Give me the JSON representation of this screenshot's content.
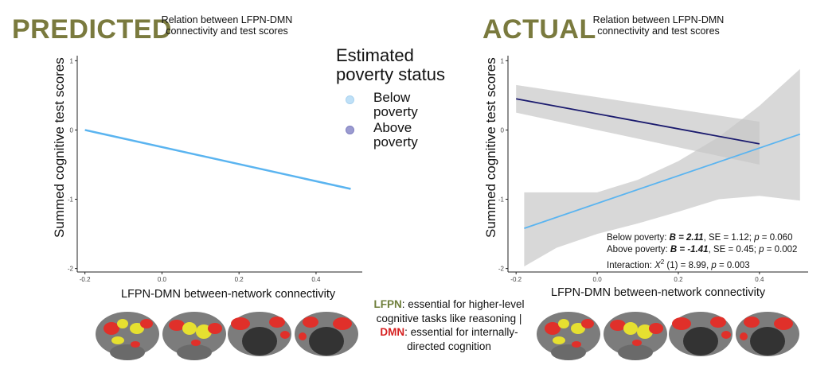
{
  "left_panel": {
    "heading": "PREDICTED",
    "subtitle_line1": "Relation between LFPN-DMN",
    "subtitle_line2": "connectivity and test scores"
  },
  "right_panel": {
    "heading": "ACTUAL",
    "subtitle_line1": "Relation between LFPN-DMN",
    "subtitle_line2": "connectivity and test scores",
    "stats": {
      "line1_prefix": "Below poverty: ",
      "line1_b": "B = 2.11",
      "line1_rest_a": ", SE = 1.12; ",
      "p_letter": "p",
      "line1_rest_b": " = 0.060",
      "line2_prefix": "Above poverty: ",
      "line2_b": "B = -1.41",
      "line2_rest_a": ", SE = 0.45; ",
      "line2_rest_b": " = 0.002",
      "line3_prefix": "Interaction: ",
      "chi_letter": "X",
      "chi_sup": "2",
      "line3_rest": " (1) = 8.99, ",
      "line3_p_rest": " = 0.003"
    }
  },
  "legend": {
    "title_line1": "Estimated",
    "title_line2": "poverty status",
    "items": [
      {
        "label": "Below poverty",
        "color": "#5ab4f0"
      },
      {
        "label": "Above poverty",
        "color": "#1a1a6e"
      }
    ]
  },
  "center_note": {
    "lfpn": "LFPN",
    "part1": ": essential for higher-level cognitive tasks like reasoning | ",
    "dmn": "DMN",
    "part2": ": essential for internally-directed cognition"
  },
  "colors": {
    "heading": "#7a7a3e",
    "below": "#5ab4f0",
    "above": "#1a1a6e",
    "ci_band": "#c8c8c8",
    "brain_gray": "#7a7a7a",
    "brain_red": "#e0302a",
    "brain_yellow": "#e6e030"
  },
  "chart_data": [
    {
      "type": "line",
      "title": "Relation between LFPN-DMN connectivity and test scores",
      "panel": "PREDICTED",
      "xlabel": "LFPN-DMN between-network connectivity",
      "ylabel": "Summed cognitive test scores",
      "xlim": [
        -0.22,
        0.52
      ],
      "ylim": [
        -2.05,
        1.05
      ],
      "xticks": [
        -0.2,
        0.0,
        0.2,
        0.4
      ],
      "xtick_labels": [
        "-0.2",
        "0.0",
        "0.2",
        "0.4"
      ],
      "yticks": [
        -2,
        -1,
        0,
        1
      ],
      "ytick_labels": [
        "-2",
        "-1",
        "0",
        "1"
      ],
      "series": [
        {
          "name": "Below poverty",
          "color": "#5ab4f0",
          "x": [
            -0.2,
            0.49
          ],
          "y": [
            0.0,
            -0.85
          ]
        }
      ]
    },
    {
      "type": "line",
      "title": "Relation between LFPN-DMN connectivity and test scores",
      "panel": "ACTUAL",
      "xlabel": "LFPN-DMN between-network connectivity",
      "ylabel": "Summed cognitive test scores",
      "xlim": [
        -0.22,
        0.52
      ],
      "ylim": [
        -2.05,
        1.05
      ],
      "xticks": [
        -0.2,
        0.0,
        0.2,
        0.4
      ],
      "xtick_labels": [
        "-0.2",
        "0.0",
        "0.2",
        "0.4"
      ],
      "yticks": [
        -2,
        -1,
        0,
        1
      ],
      "ytick_labels": [
        "-2",
        "-1",
        "0",
        "1"
      ],
      "series": [
        {
          "name": "Above poverty",
          "color": "#1a1a6e",
          "x": [
            -0.2,
            0.4
          ],
          "y": [
            0.45,
            -0.2
          ],
          "ci_upper": [
            0.65,
            0.12
          ],
          "ci_lower": [
            0.25,
            -0.5
          ]
        },
        {
          "name": "Below poverty",
          "color": "#5ab4f0",
          "x": [
            -0.18,
            0.5
          ],
          "y": [
            -1.42,
            -0.06
          ],
          "ci_x": [
            -0.18,
            -0.1,
            0.0,
            0.1,
            0.2,
            0.3,
            0.4,
            0.5
          ],
          "ci_upper": [
            -0.9,
            -0.9,
            -0.9,
            -0.72,
            -0.45,
            -0.1,
            0.35,
            0.88
          ],
          "ci_lower": [
            -1.97,
            -1.7,
            -1.5,
            -1.35,
            -1.18,
            -1.0,
            -0.95,
            -1.02
          ]
        }
      ]
    }
  ]
}
